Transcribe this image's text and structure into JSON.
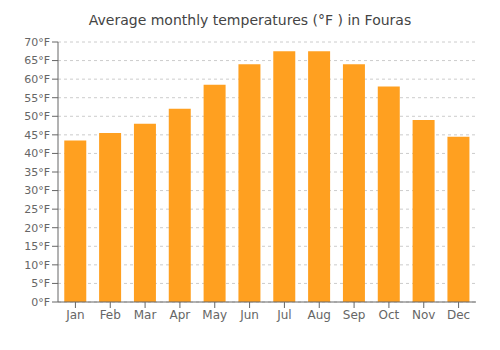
{
  "chart_data": {
    "type": "bar",
    "title": "Average monthly temperatures (°F ) in Fouras",
    "categories": [
      "Jan",
      "Feb",
      "Mar",
      "Apr",
      "May",
      "Jun",
      "Jul",
      "Aug",
      "Sep",
      "Oct",
      "Nov",
      "Dec"
    ],
    "values": [
      43.5,
      45.5,
      48.0,
      52.0,
      58.5,
      64.0,
      67.5,
      67.5,
      64.0,
      58.0,
      49.0,
      44.5
    ],
    "color": "#FFA020",
    "ylim": [
      0,
      70
    ],
    "yticks": [
      {
        "value": 0,
        "label": "0°F"
      },
      {
        "value": 5,
        "label": "5°F"
      },
      {
        "value": 10,
        "label": "10°F"
      },
      {
        "value": 15,
        "label": "15°F"
      },
      {
        "value": 20,
        "label": "20°F"
      },
      {
        "value": 25,
        "label": "25°F"
      },
      {
        "value": 30,
        "label": "30°F"
      },
      {
        "value": 35,
        "label": "35°F"
      },
      {
        "value": 40,
        "label": "40°F"
      },
      {
        "value": 45,
        "label": "45°F"
      },
      {
        "value": 50,
        "label": "50°F"
      },
      {
        "value": 55,
        "label": "55°F"
      },
      {
        "value": 60,
        "label": "60°F"
      },
      {
        "value": 65,
        "label": "65°F"
      },
      {
        "value": 70,
        "label": "70°F"
      }
    ],
    "grid": true
  }
}
